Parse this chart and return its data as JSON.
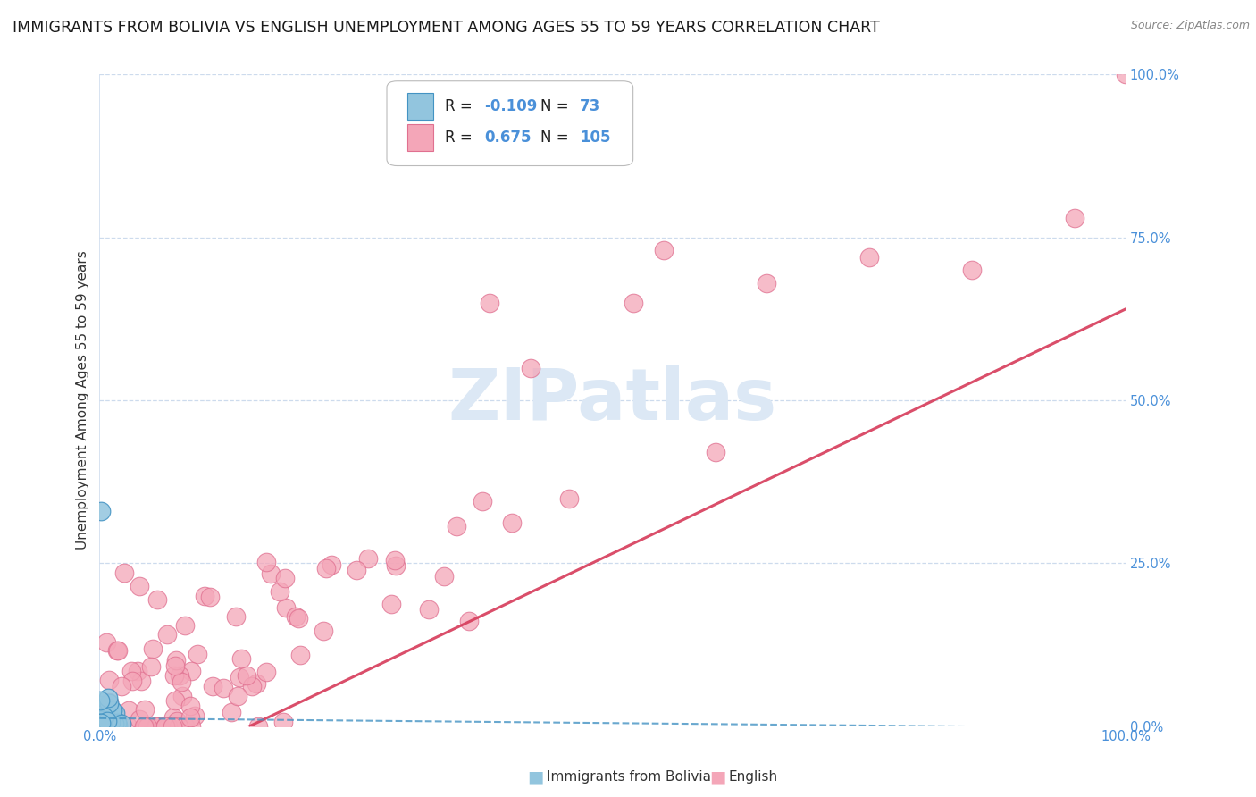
{
  "title": "IMMIGRANTS FROM BOLIVIA VS ENGLISH UNEMPLOYMENT AMONG AGES 55 TO 59 YEARS CORRELATION CHART",
  "source": "Source: ZipAtlas.com",
  "ylabel": "Unemployment Among Ages 55 to 59 years",
  "xlim": [
    0,
    1
  ],
  "ylim": [
    0,
    1
  ],
  "x_edge_labels": [
    "0.0%",
    "100.0%"
  ],
  "ytick_positions": [
    0.0,
    0.25,
    0.5,
    0.75,
    1.0
  ],
  "ytick_labels": [
    "0.0%",
    "25.0%",
    "50.0%",
    "75.0%",
    "100.0%"
  ],
  "bolivia_R": -0.109,
  "bolivia_N": 73,
  "english_R": 0.675,
  "english_N": 105,
  "bolivia_color": "#92c5de",
  "bolivia_edge": "#4393c3",
  "english_color": "#f4a6b8",
  "english_edge": "#e07090",
  "bolivia_trend_color": "#4393c3",
  "english_trend_color": "#d63b5a",
  "background_color": "#ffffff",
  "grid_color": "#c8d8ec",
  "title_fontsize": 12.5,
  "source_fontsize": 9,
  "axis_label_fontsize": 11,
  "tick_fontsize": 10.5,
  "legend_fontsize": 12,
  "watermark_text": "ZIPatlas",
  "watermark_color": "#dce8f5",
  "legend_r1": "R =  -0.109",
  "legend_n1": "N =   73",
  "legend_r2": "R =   0.675",
  "legend_n2": "N =  105"
}
